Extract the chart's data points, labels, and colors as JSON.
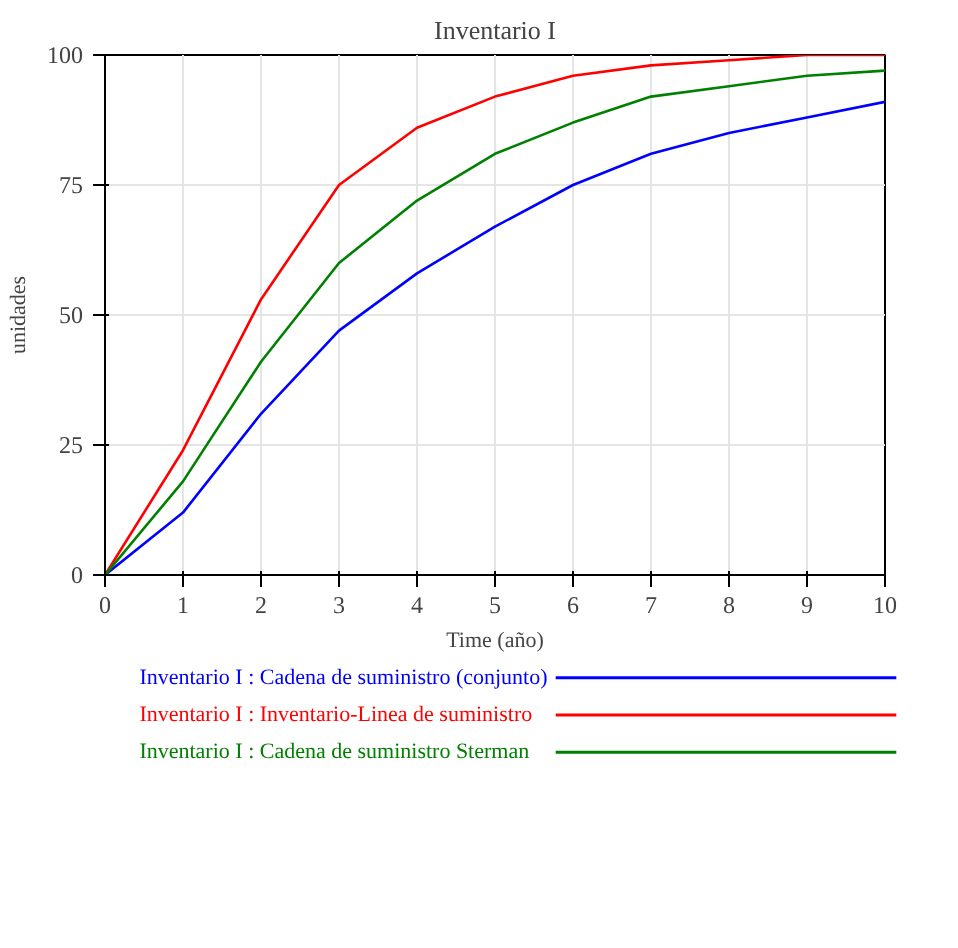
{
  "chart_data": {
    "type": "line",
    "title": "Inventario I",
    "xlabel": "Time (año)",
    "ylabel": "unidades",
    "x": [
      0,
      1,
      2,
      3,
      4,
      5,
      6,
      7,
      8,
      9,
      10
    ],
    "xlim": [
      0,
      10
    ],
    "xticks": [
      0,
      1,
      2,
      3,
      4,
      5,
      6,
      7,
      8,
      9,
      10
    ],
    "ylim": [
      0,
      100
    ],
    "yticks": [
      0,
      25,
      50,
      75,
      100
    ],
    "grid": true,
    "legend": "bottom",
    "marker": "none",
    "line_style": "solid",
    "series": [
      {
        "name": "Inventario I : Cadena de suministro (conjunto)",
        "color": "#0000ff",
        "values": [
          0,
          12,
          31,
          47,
          58,
          67,
          75,
          81,
          85,
          88,
          91
        ]
      },
      {
        "name": "Inventario I : Inventario-Linea de suministro",
        "color": "#ff0000",
        "values": [
          0,
          24,
          53,
          75,
          86,
          92,
          96,
          98,
          99,
          100,
          100
        ]
      },
      {
        "name": "Inventario I : Cadena de suministro Sterman",
        "color": "#008000",
        "values": [
          0,
          18,
          41,
          60,
          72,
          81,
          87,
          92,
          94,
          96,
          97
        ]
      }
    ]
  }
}
